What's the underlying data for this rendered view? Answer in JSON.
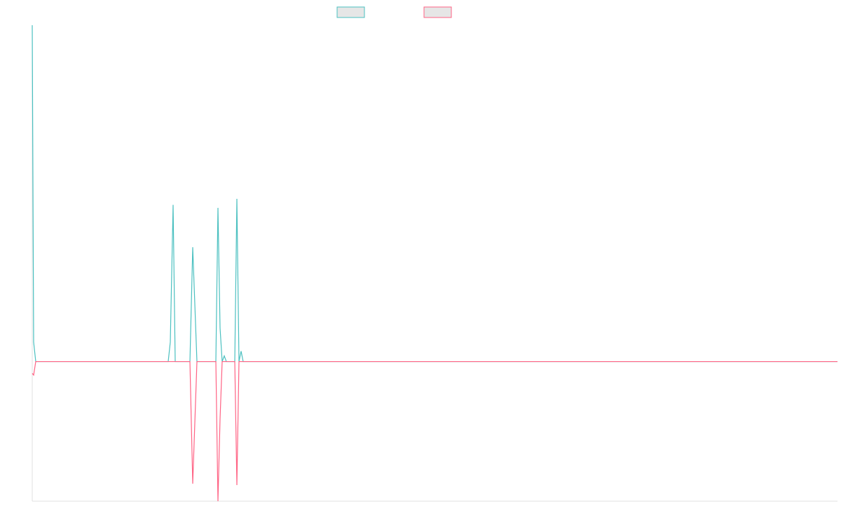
{
  "chart_data": {
    "type": "line",
    "x": [
      0,
      2,
      5,
      194,
      197,
      201,
      204,
      225,
      229,
      235,
      262,
      265,
      268,
      271,
      274,
      277,
      289,
      292,
      295,
      298,
      301,
      1149
    ],
    "xlim": [
      0,
      1149
    ],
    "ylim": [
      -41.5,
      100
    ],
    "series": [
      {
        "color": "#4bc0c0",
        "values": [
          100,
          5.8,
          0,
          0,
          5.8,
          46.6,
          0,
          0,
          34,
          0,
          0,
          45.7,
          10,
          0,
          1.7,
          0,
          0,
          48.4,
          0,
          3.1,
          0,
          0
        ]
      },
      {
        "color": "#ff6384",
        "values": [
          -3.5,
          -4,
          0,
          0,
          0,
          0,
          0,
          0,
          -36.3,
          0,
          0,
          -41.5,
          -17,
          0,
          0,
          0,
          0,
          -36.7,
          0,
          0,
          0,
          0
        ]
      }
    ]
  }
}
